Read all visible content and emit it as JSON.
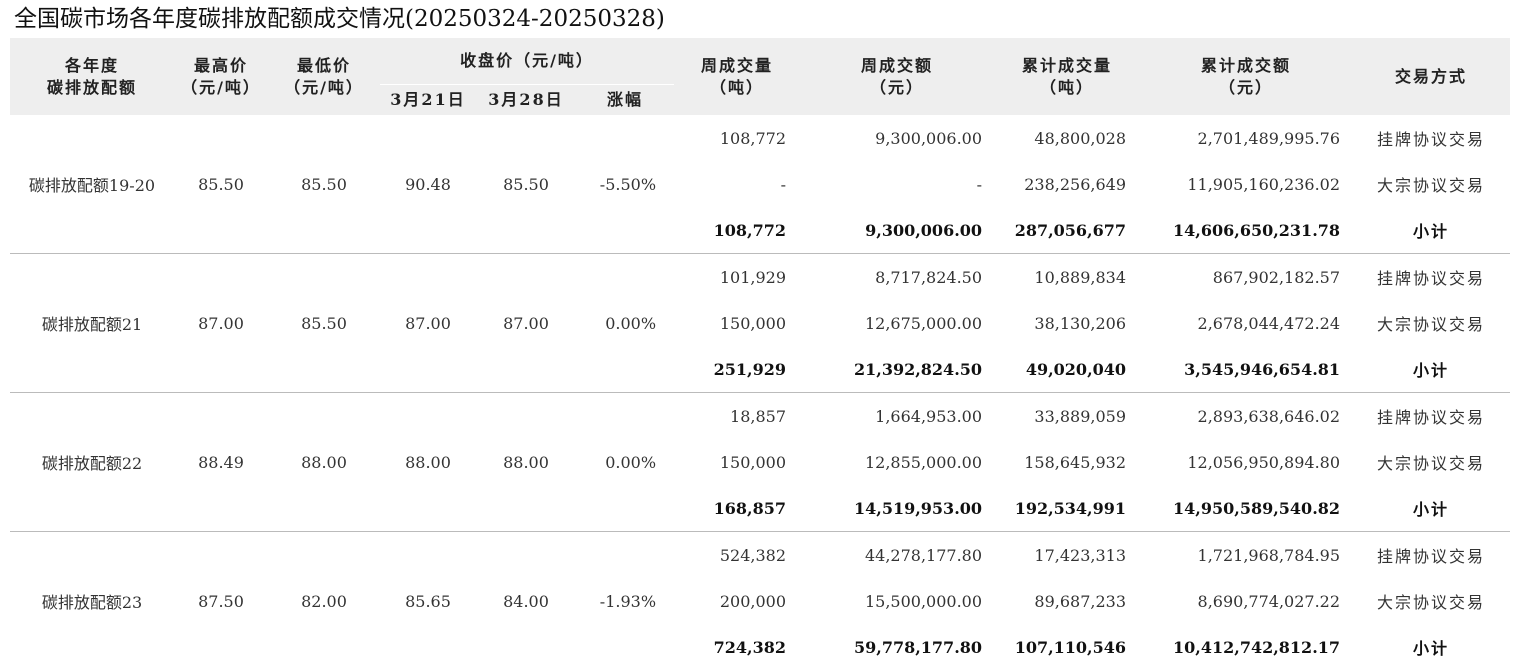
{
  "title": "全国碳市场各年度碳排放配额成交情况(20250324-20250328)",
  "headers": {
    "year_l1": "各年度",
    "year_l2": "碳排放配额",
    "high_l1": "最高价",
    "high_l2": "（元/吨）",
    "low_l1": "最低价",
    "low_l2": "（元/吨）",
    "close_group": "收盘价（元/吨）",
    "close_d1": "3月21日",
    "close_d2": "3月28日",
    "change": "涨幅",
    "wqty_l1": "周成交量",
    "wqty_l2": "（吨）",
    "wamt_l1": "周成交额",
    "wamt_l2": "（元）",
    "cqty_l1": "累计成交量",
    "cqty_l2": "（吨）",
    "camt_l1": "累计成交额",
    "camt_l2": "（元）",
    "mode": "交易方式"
  },
  "groups": [
    {
      "name": "碳排放配额19-20",
      "high": "85.50",
      "low": "85.50",
      "close_d1": "90.48",
      "close_d2": "85.50",
      "change": "-5.50%",
      "rows": [
        {
          "wqty": "108,772",
          "wamt": "9,300,006.00",
          "cqty": "48,800,028",
          "camt": "2,701,489,995.76",
          "mode": "挂牌协议交易"
        },
        {
          "wqty": "-",
          "wamt": "-",
          "cqty": "238,256,649",
          "camt": "11,905,160,236.02",
          "mode": "大宗协议交易"
        },
        {
          "wqty": "108,772",
          "wamt": "9,300,006.00",
          "cqty": "287,056,677",
          "camt": "14,606,650,231.78",
          "mode": "小计"
        }
      ]
    },
    {
      "name": "碳排放配额21",
      "high": "87.00",
      "low": "85.50",
      "close_d1": "87.00",
      "close_d2": "87.00",
      "change": "0.00%",
      "rows": [
        {
          "wqty": "101,929",
          "wamt": "8,717,824.50",
          "cqty": "10,889,834",
          "camt": "867,902,182.57",
          "mode": "挂牌协议交易"
        },
        {
          "wqty": "150,000",
          "wamt": "12,675,000.00",
          "cqty": "38,130,206",
          "camt": "2,678,044,472.24",
          "mode": "大宗协议交易"
        },
        {
          "wqty": "251,929",
          "wamt": "21,392,824.50",
          "cqty": "49,020,040",
          "camt": "3,545,946,654.81",
          "mode": "小计"
        }
      ]
    },
    {
      "name": "碳排放配额22",
      "high": "88.49",
      "low": "88.00",
      "close_d1": "88.00",
      "close_d2": "88.00",
      "change": "0.00%",
      "rows": [
        {
          "wqty": "18,857",
          "wamt": "1,664,953.00",
          "cqty": "33,889,059",
          "camt": "2,893,638,646.02",
          "mode": "挂牌协议交易"
        },
        {
          "wqty": "150,000",
          "wamt": "12,855,000.00",
          "cqty": "158,645,932",
          "camt": "12,056,950,894.80",
          "mode": "大宗协议交易"
        },
        {
          "wqty": "168,857",
          "wamt": "14,519,953.00",
          "cqty": "192,534,991",
          "camt": "14,950,589,540.82",
          "mode": "小计"
        }
      ]
    },
    {
      "name": "碳排放配额23",
      "high": "87.50",
      "low": "82.00",
      "close_d1": "85.65",
      "close_d2": "84.00",
      "change": "-1.93%",
      "rows": [
        {
          "wqty": "524,382",
          "wamt": "44,278,177.80",
          "cqty": "17,423,313",
          "camt": "1,721,968,784.95",
          "mode": "挂牌协议交易"
        },
        {
          "wqty": "200,000",
          "wamt": "15,500,000.00",
          "cqty": "89,687,233",
          "camt": "8,690,774,027.22",
          "mode": "大宗协议交易"
        },
        {
          "wqty": "724,382",
          "wamt": "59,778,177.80",
          "cqty": "107,110,546",
          "camt": "10,412,742,812.17",
          "mode": "小计"
        }
      ]
    }
  ]
}
